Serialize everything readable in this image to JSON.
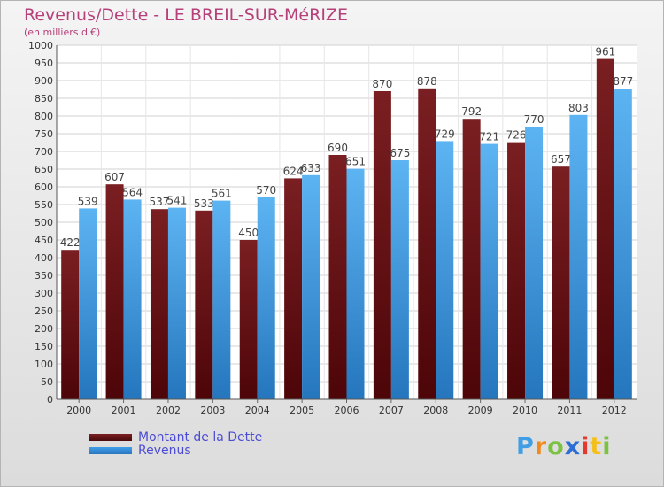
{
  "title": "Revenus/Dette - LE BREIL-SUR-MéRIZE",
  "subtitle": "(en milliers d'€)",
  "chart_data": {
    "type": "bar",
    "categories": [
      "2000",
      "2001",
      "2002",
      "2003",
      "2004",
      "2005",
      "2006",
      "2007",
      "2008",
      "2009",
      "2010",
      "2011",
      "2012"
    ],
    "series": [
      {
        "name": "Montant de la Dette",
        "color": "#7a1f22",
        "values": [
          422,
          607,
          537,
          533,
          450,
          624,
          690,
          870,
          878,
          792,
          726,
          657,
          961
        ]
      },
      {
        "name": "Revenus",
        "color": "#3f9ee6",
        "values": [
          539,
          564,
          541,
          561,
          570,
          633,
          651,
          675,
          729,
          721,
          770,
          803,
          877
        ]
      }
    ],
    "ylim": [
      0,
      1000
    ],
    "ytick_step": 50,
    "grid": true,
    "legend_position": "bottom-left"
  },
  "logo": {
    "letters": [
      "P",
      "r",
      "o",
      "x",
      "i",
      "t",
      "i"
    ],
    "colors": [
      "#3f9ee6",
      "#f08a1c",
      "#7cc242",
      "#2b6fd6",
      "#e23b2e",
      "#f3c01b",
      "#7cc242"
    ]
  }
}
